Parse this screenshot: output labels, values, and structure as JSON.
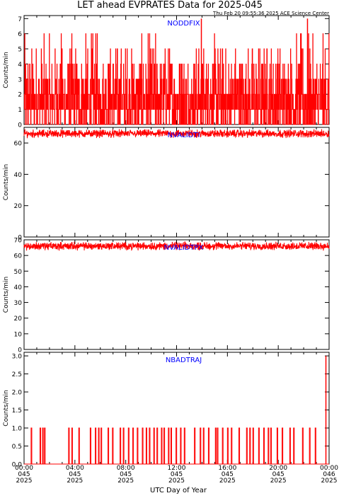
{
  "title": "LET ahead EVPRATES Data for 2025-045",
  "timestamp": "Thu Feb 20 09:55:36 2025 ACE Science Center",
  "x_axis_title": "UTC Day of Year",
  "x_ticks": [
    {
      "time": "00:00",
      "day": "045",
      "year": "2025"
    },
    {
      "time": "04:00",
      "day": "045",
      "year": "2025"
    },
    {
      "time": "08:00",
      "day": "045",
      "year": "2025"
    },
    {
      "time": "12:00",
      "day": "045",
      "year": "2025"
    },
    {
      "time": "16:00",
      "day": "045",
      "year": "2025"
    },
    {
      "time": "20:00",
      "day": "045",
      "year": "2025"
    },
    {
      "time": "00:00",
      "day": "046",
      "year": "2025"
    }
  ],
  "colors": {
    "data": "#ff0000",
    "label": "#0000ff",
    "axis": "#000000"
  },
  "chart_data": [
    {
      "type": "line",
      "series": [
        {
          "name": "NODDFIX"
        }
      ],
      "ylabel": "Counts/min",
      "ylim": [
        0,
        7.2
      ],
      "yticks": [
        0,
        1,
        2,
        3,
        4,
        5,
        6,
        7
      ],
      "ytick_labels": [
        "0",
        "1",
        "2",
        "3",
        "4",
        "5",
        "6",
        "7"
      ],
      "xlim_hours": [
        0,
        24
      ],
      "noise": {
        "mode": "discrete",
        "levels": [
          0,
          1,
          2,
          3,
          4,
          5,
          6
        ],
        "weights": [
          0.2,
          0.3,
          0.25,
          0.12,
          0.07,
          0.04,
          0.02
        ]
      },
      "spikes": [
        {
          "x_hours": 13.95,
          "y": 7
        },
        {
          "x_hours": 22.3,
          "y": 7
        }
      ],
      "samples": 1440
    },
    {
      "type": "line",
      "series": [
        {
          "name": "NVALIDTI"
        }
      ],
      "ylabel": "Counts/min",
      "ylim": [
        0,
        70
      ],
      "yticks": [
        0,
        20,
        40,
        60
      ],
      "ytick_labels": [
        "0",
        "20",
        "40",
        "60"
      ],
      "xlim_hours": [
        0,
        24
      ],
      "noise": {
        "mode": "band",
        "mean": 66,
        "spread": 3
      },
      "samples": 1440
    },
    {
      "type": "line",
      "series": [
        {
          "name": "NVALIDTPX"
        }
      ],
      "ylabel": "Counts/min",
      "ylim": [
        0,
        70
      ],
      "yticks": [
        0,
        10,
        20,
        30,
        40,
        50,
        60,
        70
      ],
      "ytick_labels": [
        "0",
        "10",
        "20",
        "30",
        "40",
        "50",
        "60",
        "70"
      ],
      "xlim_hours": [
        0,
        24
      ],
      "noise": {
        "mode": "band",
        "mean": 66,
        "spread": 3
      },
      "samples": 1440
    },
    {
      "type": "line",
      "series": [
        {
          "name": "NBADTRAJ"
        }
      ],
      "ylabel": "Counts/min",
      "ylim": [
        0,
        3.1
      ],
      "yticks": [
        0,
        0.5,
        1,
        1.5,
        2,
        2.5,
        3
      ],
      "ytick_labels": [
        "0.0",
        "0.5",
        "1.0",
        "1.5",
        "2.0",
        "2.5",
        "3.0"
      ],
      "xlim_hours": [
        0,
        24
      ],
      "pulses": [
        0.55,
        1.25,
        1.45,
        1.6,
        3.5,
        3.75,
        4.3,
        5.2,
        5.6,
        5.85,
        6.05,
        6.6,
        6.95,
        7.55,
        7.8,
        8.2,
        8.55,
        8.9,
        9.3,
        9.6,
        9.85,
        10.2,
        10.45,
        10.8,
        11.0,
        11.35,
        11.55,
        11.95,
        12.3,
        12.6,
        13.4,
        13.85,
        14.1,
        14.5,
        15.05,
        15.2,
        15.6,
        16.0,
        16.3,
        16.9,
        17.5,
        17.75,
        18.0,
        18.45,
        18.85,
        19.2,
        19.4,
        19.9,
        20.3,
        20.9,
        21.2,
        21.9,
        22.45,
        22.9
      ],
      "spikes": [
        {
          "x_hours": 23.75,
          "y": 3.0
        }
      ]
    }
  ]
}
